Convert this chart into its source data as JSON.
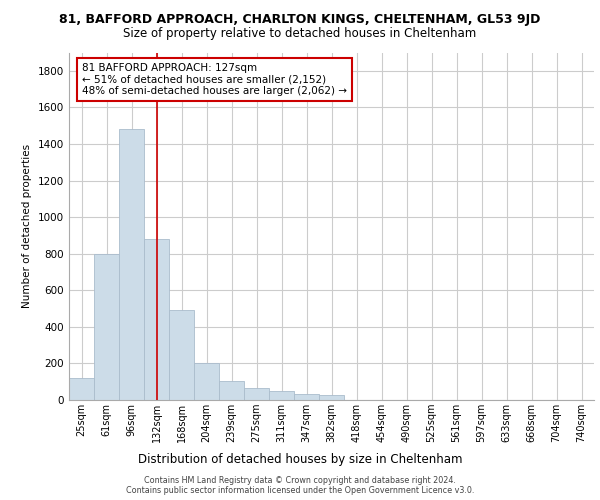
{
  "title_main": "81, BAFFORD APPROACH, CHARLTON KINGS, CHELTENHAM, GL53 9JD",
  "title_sub": "Size of property relative to detached houses in Cheltenham",
  "xlabel": "Distribution of detached houses by size in Cheltenham",
  "ylabel": "Number of detached properties",
  "bar_labels": [
    "25sqm",
    "61sqm",
    "96sqm",
    "132sqm",
    "168sqm",
    "204sqm",
    "239sqm",
    "275sqm",
    "311sqm",
    "347sqm",
    "382sqm",
    "418sqm",
    "454sqm",
    "490sqm",
    "525sqm",
    "561sqm",
    "597sqm",
    "633sqm",
    "668sqm",
    "704sqm",
    "740sqm"
  ],
  "bar_values": [
    120,
    800,
    1480,
    880,
    490,
    205,
    105,
    65,
    50,
    35,
    25,
    0,
    0,
    0,
    0,
    0,
    0,
    0,
    0,
    0,
    0
  ],
  "bar_color": "#ccdce8",
  "bar_edge_color": "#aabccc",
  "vline_x": 3,
  "vline_color": "#cc0000",
  "ylim": [
    0,
    1900
  ],
  "yticks": [
    0,
    200,
    400,
    600,
    800,
    1000,
    1200,
    1400,
    1600,
    1800
  ],
  "annotation_title": "81 BAFFORD APPROACH: 127sqm",
  "annotation_line1": "← 51% of detached houses are smaller (2,152)",
  "annotation_line2": "48% of semi-detached houses are larger (2,062) →",
  "footer1": "Contains HM Land Registry data © Crown copyright and database right 2024.",
  "footer2": "Contains public sector information licensed under the Open Government Licence v3.0.",
  "background_color": "#ffffff",
  "grid_color": "#cccccc"
}
